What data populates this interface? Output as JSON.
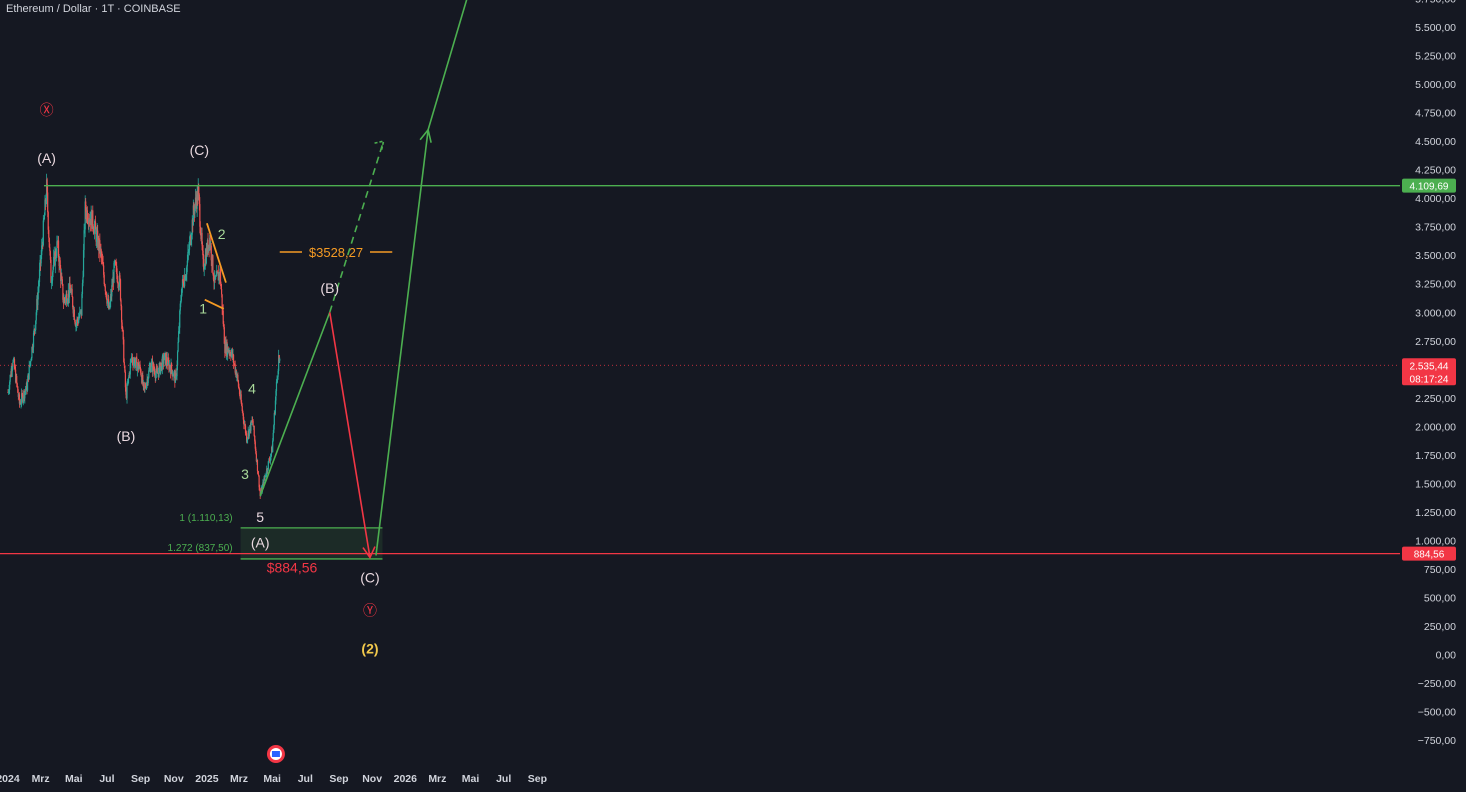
{
  "header": {
    "title": "Ethereum / Dollar · 1T · COINBASE"
  },
  "chart_data": {
    "type": "candlestick",
    "symbol": "Ethereum / Dollar",
    "interval": "1T",
    "exchange": "COINBASE",
    "ylim": [
      -750,
      5750
    ],
    "y_ticks": [
      "5.750,00",
      "5.500,00",
      "5.250,00",
      "5.000,00",
      "4.750,00",
      "4.500,00",
      "4.250,00",
      "4.000,00",
      "3.750,00",
      "3.500,00",
      "3.250,00",
      "3.000,00",
      "2.750,00",
      "2.500,00",
      "2.250,00",
      "2.000,00",
      "1.750,00",
      "1.500,00",
      "1.250,00",
      "1.000,00",
      "750,00",
      "500,00",
      "250,00",
      "0,00",
      "−250,00",
      "−500,00",
      "−750,00"
    ],
    "x_ticks": [
      "2024",
      "Mrz",
      "Mai",
      "Jul",
      "Sep",
      "Nov",
      "2025",
      "Mrz",
      "Mai",
      "Jul",
      "Sep",
      "Nov",
      "2026",
      "Mrz",
      "Mai",
      "Jul",
      "Sep"
    ],
    "price_path": [
      [
        "2024-01-01",
        2300
      ],
      [
        "2024-01-10",
        2600
      ],
      [
        "2024-01-22",
        2200
      ],
      [
        "2024-02-05",
        2350
      ],
      [
        "2024-02-20",
        2900
      ],
      [
        "2024-03-04",
        3600
      ],
      [
        "2024-03-12",
        4090
      ],
      [
        "2024-03-20",
        3300
      ],
      [
        "2024-04-01",
        3600
      ],
      [
        "2024-04-12",
        3100
      ],
      [
        "2024-04-25",
        3200
      ],
      [
        "2024-05-05",
        2900
      ],
      [
        "2024-05-15",
        3000
      ],
      [
        "2024-05-22",
        3900
      ],
      [
        "2024-06-05",
        3800
      ],
      [
        "2024-06-20",
        3500
      ],
      [
        "2024-07-05",
        3000
      ],
      [
        "2024-07-15",
        3400
      ],
      [
        "2024-07-25",
        3250
      ],
      [
        "2024-08-05",
        2250
      ],
      [
        "2024-08-15",
        2600
      ],
      [
        "2024-09-01",
        2500
      ],
      [
        "2024-09-07",
        2300
      ],
      [
        "2024-09-20",
        2550
      ],
      [
        "2024-10-01",
        2450
      ],
      [
        "2024-10-15",
        2600
      ],
      [
        "2024-10-28",
        2500
      ],
      [
        "2024-11-05",
        2400
      ],
      [
        "2024-11-15",
        3200
      ],
      [
        "2024-11-25",
        3400
      ],
      [
        "2024-12-08",
        3900
      ],
      [
        "2024-12-16",
        4050
      ],
      [
        "2024-12-25",
        3400
      ],
      [
        "2025-01-06",
        3650
      ],
      [
        "2025-01-15",
        3250
      ],
      [
        "2025-01-25",
        3350
      ],
      [
        "2025-02-03",
        2700
      ],
      [
        "2025-02-15",
        2650
      ],
      [
        "2025-02-25",
        2450
      ],
      [
        "2025-03-05",
        2200
      ],
      [
        "2025-03-15",
        1900
      ],
      [
        "2025-03-26",
        2050
      ],
      [
        "2025-04-06",
        1550
      ],
      [
        "2025-04-09",
        1390
      ],
      [
        "2025-04-20",
        1600
      ],
      [
        "2025-05-01",
        1800
      ],
      [
        "2025-05-08",
        2300
      ],
      [
        "2025-05-13",
        2600
      ],
      [
        "2025-05-15",
        2535
      ]
    ],
    "last_price": "2.535,44",
    "countdown": "08:17:24",
    "levels": [
      {
        "name": "resistance",
        "value": 4109.69,
        "label": "4.109,69",
        "color": "#4caf50"
      },
      {
        "name": "support",
        "value": 884.56,
        "label": "884,56",
        "color": "#f23645",
        "text": "$884,56"
      },
      {
        "name": "target-b",
        "value": 3528.27,
        "text": "$3528,27",
        "color": "#f59b24"
      }
    ],
    "fib_zone": {
      "top": 1110.13,
      "bottom": 837.5,
      "label_top": "1 (1.110,13)",
      "label_bottom": "1.272 (837,50)"
    },
    "projection_path": [
      [
        "2025-04-09",
        1390
      ],
      [
        "2025-08-15",
        3000
      ],
      [
        "2025-10-28",
        850
      ],
      [
        "2026-02-12",
        4600
      ]
    ],
    "projection_dashed": [
      [
        "2025-08-15",
        3000
      ],
      [
        "2025-11-22",
        4500
      ]
    ],
    "wave_labels": [
      {
        "text": "Ⓧ",
        "at": [
          "2024-03-12",
          4730
        ],
        "color": "#f23645"
      },
      {
        "text": "(A)",
        "at": [
          "2024-03-12",
          4310
        ],
        "color": "#ead9e0"
      },
      {
        "text": "(B)",
        "at": [
          "2024-08-05",
          1870
        ],
        "color": "#ead9e0"
      },
      {
        "text": "(C)",
        "at": [
          "2024-12-18",
          4380
        ],
        "color": "#ead9e0"
      },
      {
        "text": "1",
        "at": [
          "2024-12-25",
          2990
        ],
        "color": "#a9d99a"
      },
      {
        "text": "2",
        "at": [
          "2025-01-28",
          3640
        ],
        "color": "#a9d99a"
      },
      {
        "text": "3",
        "at": [
          "2025-03-12",
          1540
        ],
        "color": "#a9d99a"
      },
      {
        "text": "4",
        "at": [
          "2025-03-25",
          2290
        ],
        "color": "#a9d99a"
      },
      {
        "text": "5",
        "at": [
          "2025-04-09",
          1160
        ],
        "color": "#ead9e0"
      },
      {
        "text": "(A)",
        "at": [
          "2025-04-09",
          940
        ],
        "color": "#ead9e0"
      },
      {
        "text": "(B)",
        "at": [
          "2025-08-15",
          3170
        ],
        "color": "#ead9e0"
      },
      {
        "text": "(C)",
        "at": [
          "2025-10-28",
          630
        ],
        "color": "#ead9e0"
      },
      {
        "text": "Ⓨ",
        "at": [
          "2025-10-28",
          340
        ],
        "color": "#f23645"
      },
      {
        "text": "(2)",
        "at": [
          "2025-10-28",
          10
        ],
        "color": "#f2c94c"
      }
    ]
  }
}
